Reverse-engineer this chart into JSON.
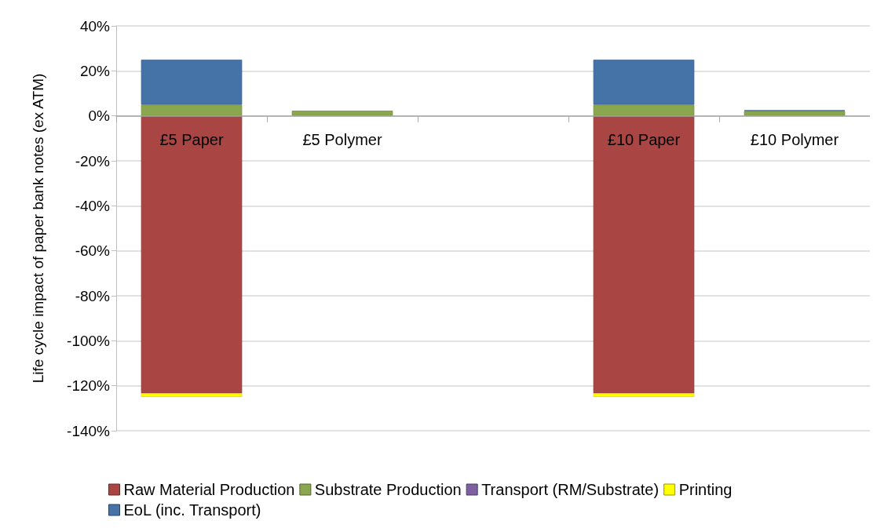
{
  "chart_data": {
    "type": "bar",
    "stacked": true,
    "ylabel": "Life cycle impact of paper bank notes (ex ATM)",
    "categories": [
      "£5 Paper",
      "£5 Polymer",
      null,
      "£10 Paper",
      "£10 Polymer"
    ],
    "series": [
      {
        "name": "Raw Material Production",
        "color": "#a94543",
        "values": [
          -123.4,
          null,
          null,
          -123.4,
          null
        ]
      },
      {
        "name": "Substrate Production",
        "color": "#8aa64f",
        "values": [
          5,
          2.3,
          null,
          5,
          2.2
        ]
      },
      {
        "name": "Transport (RM/Substrate)",
        "color": "#7e5fa0",
        "values": [
          null,
          null,
          null,
          null,
          null
        ]
      },
      {
        "name": "Printing",
        "color": "#ffff00",
        "values": [
          -1.6,
          null,
          null,
          -1.6,
          null
        ]
      },
      {
        "name": "EoL (inc. Transport)",
        "color": "#4572a7",
        "values": [
          20,
          null,
          null,
          20,
          0.3
        ]
      }
    ],
    "ylim": [
      -140,
      40
    ],
    "yticks": [
      {
        "value": -140,
        "label": "-140%"
      },
      {
        "value": -120,
        "label": "-120%"
      },
      {
        "value": -100,
        "label": "-100%"
      },
      {
        "value": -80,
        "label": "-80%"
      },
      {
        "value": -60,
        "label": "-60%"
      },
      {
        "value": -40,
        "label": "-40%"
      },
      {
        "value": -20,
        "label": "-20%"
      },
      {
        "value": 0,
        "label": "0%"
      },
      {
        "value": 20,
        "label": "20%"
      },
      {
        "value": 40,
        "label": "40%"
      }
    ],
    "grid": "y",
    "legend": "bottom"
  }
}
